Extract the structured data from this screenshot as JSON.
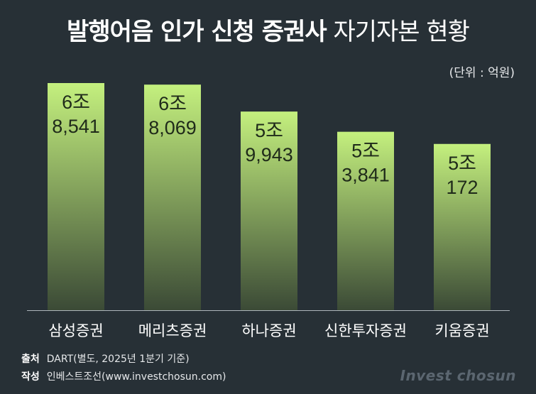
{
  "header": {
    "title_bold": "발행어음 인가 신청 증권사",
    "title_light": "자기자본 현황",
    "unit": "(단위 : 억원)"
  },
  "chart_data": {
    "type": "bar",
    "title": "발행어음 인가 신청 증권사 자기자본 현황",
    "unit": "억원",
    "categories": [
      "삼성증권",
      "메리츠증권",
      "하나증권",
      "신한투자증권",
      "키움증권"
    ],
    "values": [
      68541,
      68069,
      59943,
      53841,
      50172
    ],
    "value_labels": [
      [
        "6조",
        "8,541"
      ],
      [
        "6조",
        "8,069"
      ],
      [
        "5조",
        "9,943"
      ],
      [
        "5조",
        "3,841"
      ],
      [
        "5조",
        "172"
      ]
    ],
    "bar_color_top": "#c4f07e",
    "bar_color_bottom": "#3b4a36",
    "background": "#273036",
    "grid": false
  },
  "footer": {
    "source_label": "출처",
    "source_text": "DART(별도, 2025년 1분기 기준)",
    "author_label": "작성",
    "author_text": "인베스트조선(www.investchosun.com)"
  },
  "brand": "Invest chosun"
}
